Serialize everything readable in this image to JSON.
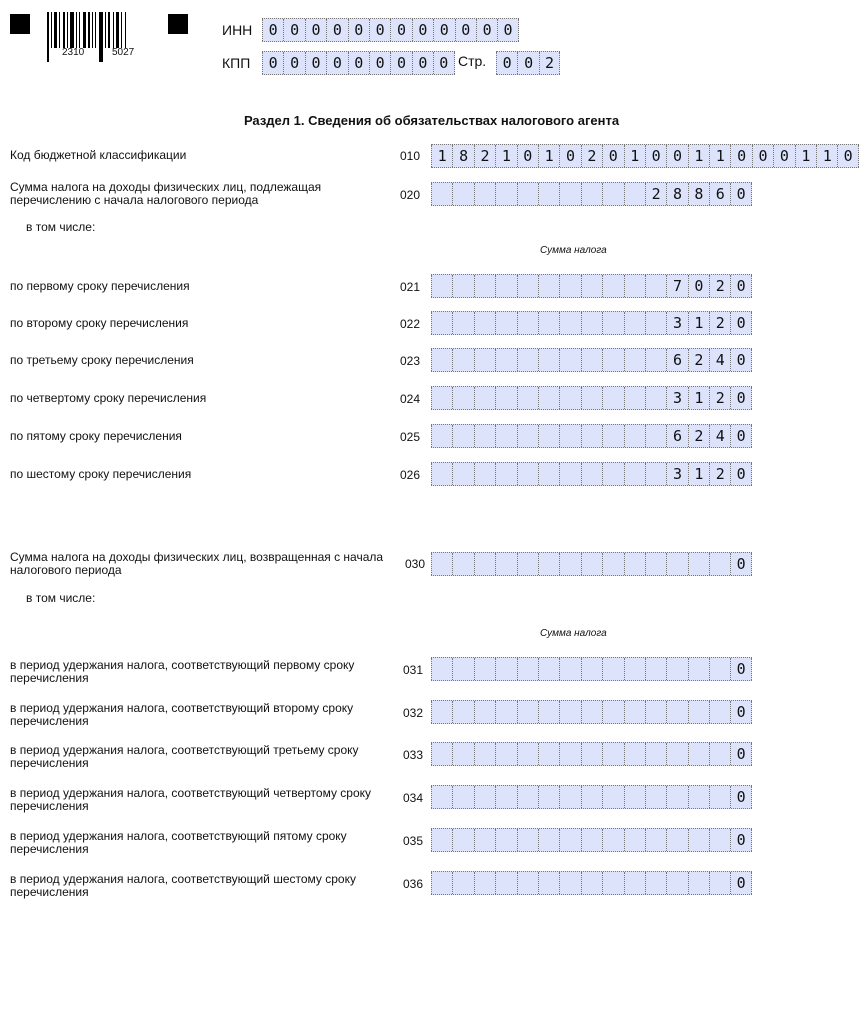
{
  "header": {
    "barcode_left": "2310",
    "barcode_right": "5027",
    "inn_label": "ИНН",
    "inn": "000000000000",
    "kpp_label": "КПП",
    "kpp": "000000000",
    "page_label": "Стр.",
    "page": "002"
  },
  "title": "Раздел 1. Сведения об обязательствах налогового агента",
  "kbk": {
    "label": "Код бюджетной классификации",
    "code": "010",
    "value": "18210102010011000110"
  },
  "withheld": {
    "label": "Сумма налога на доходы физических лиц, подлежащая перечислению с начала налогового периода",
    "code": "020",
    "value": "28860",
    "including": "в том числе:",
    "column_note": "Сумма налога",
    "rows": [
      {
        "label": "по первому сроку перечисления",
        "code": "021",
        "value": "7020"
      },
      {
        "label": "по второму сроку перечисления",
        "code": "022",
        "value": "3120"
      },
      {
        "label": "по третьему сроку перечисления",
        "code": "023",
        "value": "6240"
      },
      {
        "label": "по четвертому сроку перечисления",
        "code": "024",
        "value": "3120"
      },
      {
        "label": "по пятому сроку перечисления",
        "code": "025",
        "value": "6240"
      },
      {
        "label": "по шестому сроку перечисления",
        "code": "026",
        "value": "3120"
      }
    ]
  },
  "returned": {
    "label": "Сумма налога на доходы физических лиц, возвращенная с начала налогового периода",
    "code": "030",
    "value": "0",
    "including": "в том числе:",
    "column_note": "Сумма налога",
    "rows": [
      {
        "label": "в период удержания налога, соответствующий первому сроку перечисления",
        "code": "031",
        "value": "0"
      },
      {
        "label": "в период удержания налога, соответствующий второму сроку перечисления",
        "code": "032",
        "value": "0"
      },
      {
        "label": "в период удержания налога, соответствующий третьему сроку перечисления",
        "code": "033",
        "value": "0"
      },
      {
        "label": "в период удержания налога, соответствующий четвертому сроку перечисления",
        "code": "034",
        "value": "0"
      },
      {
        "label": "в период удержания налога, соответствующий пятому сроку перечисления",
        "code": "035",
        "value": "0"
      },
      {
        "label": "в период удержания налога, соответствующий шестому сроку перечисления",
        "code": "036",
        "value": "0"
      }
    ]
  }
}
